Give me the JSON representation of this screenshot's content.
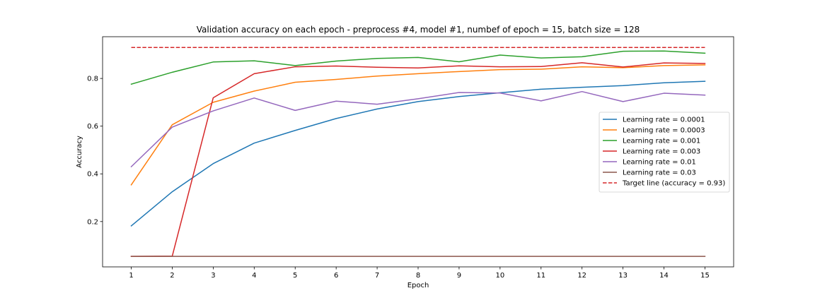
{
  "chart_data": {
    "type": "line",
    "title": "Validation accuracy on each epoch - preprocess #4, model #1, numbef of epoch = 15, batch size = 128",
    "xlabel": "Epoch",
    "ylabel": "Accuracy",
    "x": [
      1,
      2,
      3,
      4,
      5,
      6,
      7,
      8,
      9,
      10,
      11,
      12,
      13,
      14,
      15
    ],
    "xticks": [
      "1",
      "2",
      "3",
      "4",
      "5",
      "6",
      "7",
      "8",
      "9",
      "10",
      "11",
      "12",
      "13",
      "14",
      "15"
    ],
    "yticks": [
      "0.2",
      "0.4",
      "0.6",
      "0.8"
    ],
    "ytick_values": [
      0.2,
      0.4,
      0.6,
      0.8
    ],
    "xlim": [
      0.3,
      15.7
    ],
    "ylim": [
      0.01,
      0.975
    ],
    "grid": false,
    "legend_position": "center-right",
    "series": [
      {
        "name": "Learning rate = 0.0001",
        "color": "#1f77b4",
        "values": [
          0.182,
          0.325,
          0.443,
          0.529,
          0.582,
          0.632,
          0.672,
          0.703,
          0.724,
          0.74,
          0.755,
          0.763,
          0.77,
          0.782,
          0.788
        ]
      },
      {
        "name": "Learning rate = 0.0003",
        "color": "#ff7f0e",
        "values": [
          0.354,
          0.606,
          0.7,
          0.747,
          0.784,
          0.796,
          0.81,
          0.82,
          0.829,
          0.837,
          0.839,
          0.849,
          0.845,
          0.854,
          0.857
        ]
      },
      {
        "name": "Learning rate = 0.001",
        "color": "#2ca02c",
        "values": [
          0.776,
          0.826,
          0.869,
          0.874,
          0.854,
          0.873,
          0.884,
          0.888,
          0.87,
          0.898,
          0.886,
          0.891,
          0.914,
          0.915,
          0.906
        ]
      },
      {
        "name": "Learning rate = 0.003",
        "color": "#d62728",
        "values": [
          0.054,
          0.055,
          0.719,
          0.82,
          0.849,
          0.852,
          0.847,
          0.844,
          0.853,
          0.849,
          0.85,
          0.866,
          0.848,
          0.865,
          0.863
        ]
      },
      {
        "name": "Learning rate = 0.01",
        "color": "#9467bd",
        "values": [
          0.43,
          0.596,
          0.664,
          0.718,
          0.666,
          0.705,
          0.692,
          0.715,
          0.741,
          0.739,
          0.706,
          0.745,
          0.703,
          0.738,
          0.73
        ]
      },
      {
        "name": "Learning rate = 0.03",
        "color": "#8c564b",
        "values": [
          0.054,
          0.054,
          0.054,
          0.054,
          0.054,
          0.054,
          0.054,
          0.054,
          0.054,
          0.054,
          0.054,
          0.054,
          0.054,
          0.054,
          0.054
        ]
      }
    ],
    "target_line": {
      "name": "Target line (accuracy = 0.93)",
      "color": "#d62728",
      "value": 0.93,
      "style": "dashed"
    }
  }
}
